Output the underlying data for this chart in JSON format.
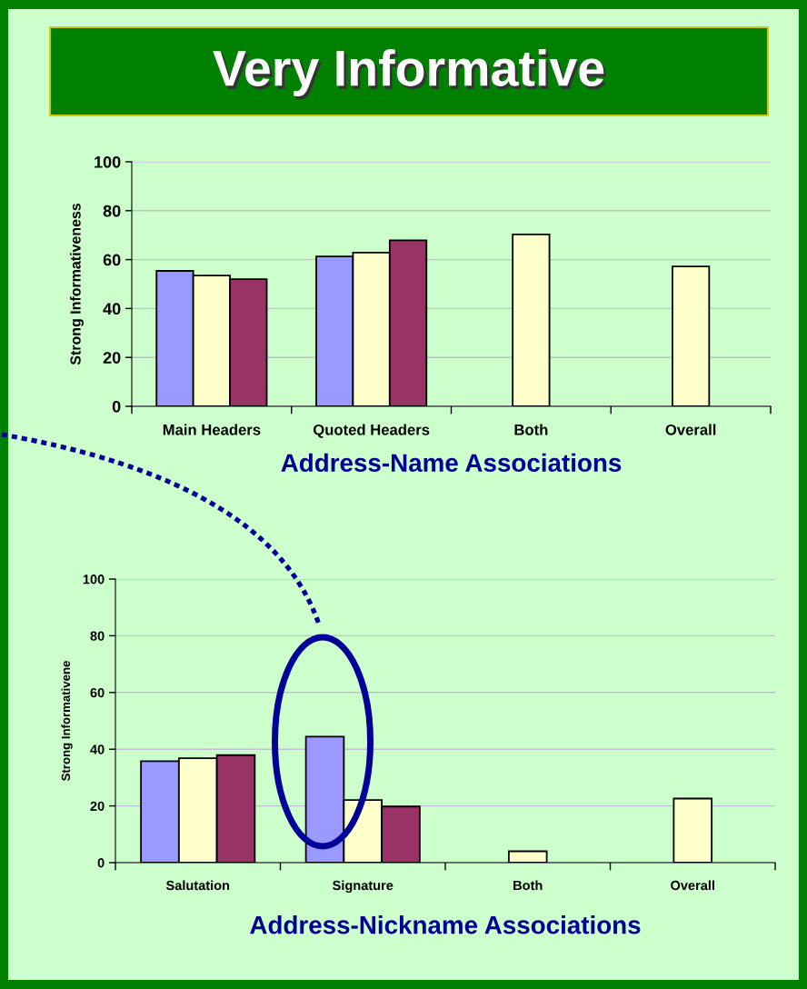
{
  "chart_data": [
    {
      "type": "bar",
      "title": "Very Informative",
      "xlabel": "Address-Name Associations",
      "ylabel": "Strong Informativeness",
      "categories": [
        "Main Headers",
        "Quoted Headers",
        "Both",
        "Overall"
      ],
      "series": [
        {
          "color": "#9999ff",
          "values": [
            55.4,
            61.3,
            null,
            null
          ]
        },
        {
          "color": "#ffffcc",
          "values": [
            53.5,
            62.9,
            70.3,
            57.2
          ]
        },
        {
          "color": "#993366",
          "values": [
            52.0,
            67.9,
            null,
            null
          ]
        }
      ],
      "ylim": [
        0,
        100
      ],
      "yticks": [
        0,
        20,
        40,
        60,
        80,
        100
      ],
      "grid": "y"
    },
    {
      "type": "bar",
      "xlabel": "Address-Nickname Associations",
      "ylabel": "Strong Informativene",
      "categories": [
        "Salutation",
        "Signature",
        "Both",
        "Overall"
      ],
      "series": [
        {
          "color": "#9999ff",
          "values": [
            35.8,
            44.4,
            null,
            null
          ]
        },
        {
          "color": "#ffffcc",
          "values": [
            36.8,
            22.1,
            4.0,
            22.6
          ]
        },
        {
          "color": "#993366",
          "values": [
            37.9,
            19.8,
            null,
            null
          ]
        }
      ],
      "ylim": [
        0,
        100
      ],
      "yticks": [
        0,
        20,
        40,
        60,
        80,
        100
      ],
      "grid": "y"
    }
  ]
}
